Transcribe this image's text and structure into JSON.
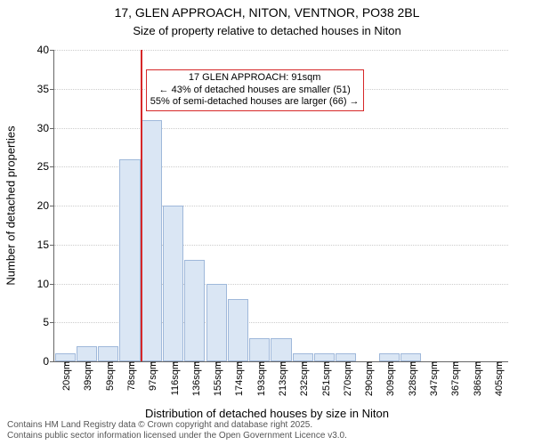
{
  "title": "17, GLEN APPROACH, NITON, VENTNOR, PO38 2BL",
  "subtitle": "Size of property relative to detached houses in Niton",
  "ylabel": "Number of detached properties",
  "xlabel": "Distribution of detached houses by size in Niton",
  "chart": {
    "type": "histogram",
    "background_color": "#ffffff",
    "grid_color": "#cccccc",
    "bar_fill": "#dae6f4",
    "bar_border": "#9fb8da",
    "axis_color": "#666666",
    "ref_line_color": "#d62728",
    "ylim": [
      0,
      40
    ],
    "ytick_step": 5,
    "yticks": [
      0,
      5,
      10,
      15,
      20,
      25,
      30,
      35,
      40
    ],
    "categories": [
      "20sqm",
      "39sqm",
      "59sqm",
      "78sqm",
      "97sqm",
      "116sqm",
      "136sqm",
      "155sqm",
      "174sqm",
      "193sqm",
      "213sqm",
      "232sqm",
      "251sqm",
      "270sqm",
      "290sqm",
      "309sqm",
      "328sqm",
      "347sqm",
      "367sqm",
      "386sqm",
      "405sqm"
    ],
    "values": [
      1,
      2,
      2,
      26,
      31,
      20,
      13,
      10,
      8,
      3,
      3,
      1,
      1,
      1,
      0,
      1,
      1,
      0,
      0,
      0,
      0
    ],
    "bar_width_rel": 0.95,
    "ref_line_category_index": 4,
    "ref_line_value_sqm": 91,
    "callout": {
      "line1": "17 GLEN APPROACH: 91sqm",
      "line2": "← 43% of detached houses are smaller (51)",
      "line3": "55% of semi-detached houses are larger (66) →"
    },
    "title_fontsize": 14,
    "label_fontsize": 13,
    "tick_fontsize": 12
  },
  "footer": {
    "line1": "Contains HM Land Registry data © Crown copyright and database right 2025.",
    "line2": "Contains public sector information licensed under the Open Government Licence v3.0."
  }
}
